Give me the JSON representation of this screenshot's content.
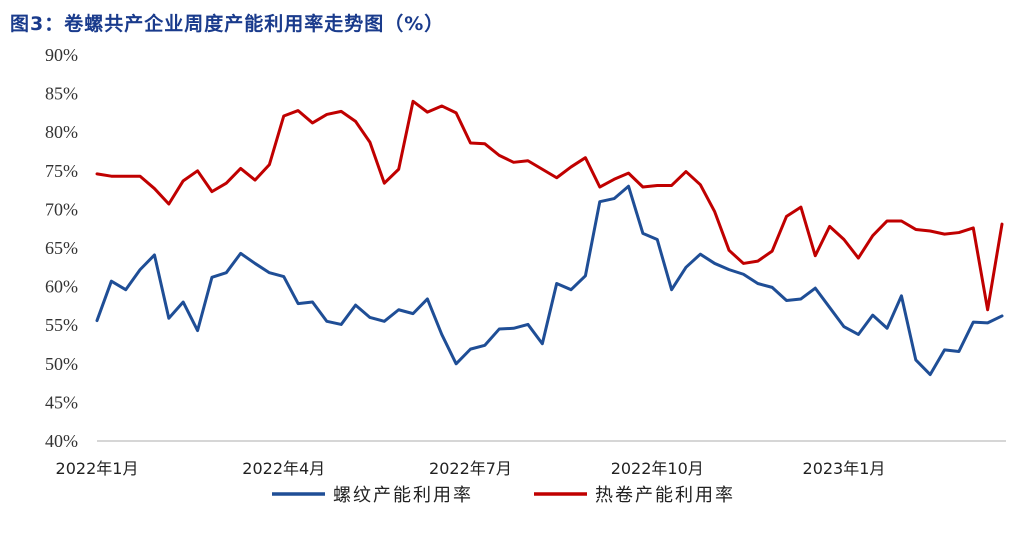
{
  "title": "图3：卷螺共产企业周度产能利用率走势图（%）",
  "chart_data": {
    "type": "line",
    "title": "图3：卷螺共产企业周度产能利用率走势图（%）",
    "xlabel": "",
    "ylabel": "",
    "ylim": [
      40,
      90
    ],
    "yticks": [
      "40%",
      "45%",
      "50%",
      "55%",
      "60%",
      "65%",
      "70%",
      "75%",
      "80%",
      "85%",
      "90%"
    ],
    "xticks": [
      "2022年1月",
      "2022年4月",
      "2022年7月",
      "2022年10月",
      "2023年1月"
    ],
    "xtick_weeks": [
      0,
      13,
      26,
      39,
      52
    ],
    "grid": false,
    "legend_position": "bottom",
    "series": [
      {
        "name": "螺纹产能利用率",
        "color": "#1f4e96",
        "values": [
          55.6,
          60.7,
          59.6,
          62.2,
          64.1,
          55.9,
          58.0,
          54.3,
          61.2,
          61.8,
          64.3,
          63.0,
          61.8,
          61.3,
          57.8,
          58.0,
          55.5,
          55.1,
          57.6,
          56.0,
          55.5,
          57.0,
          56.5,
          58.4,
          53.8,
          50.0,
          51.9,
          52.4,
          54.5,
          54.6,
          55.1,
          52.6,
          60.4,
          59.6,
          61.4,
          71.0,
          71.4,
          73.0,
          66.9,
          66.1,
          59.6,
          62.5,
          64.2,
          63.0,
          62.2,
          61.6,
          60.4,
          59.9,
          58.2,
          58.4,
          59.8,
          57.3,
          54.8,
          53.8,
          56.3,
          54.6,
          58.8,
          50.5,
          48.6,
          51.8,
          51.6,
          55.4,
          55.3,
          56.2
        ]
      },
      {
        "name": "热卷产能利用率",
        "color": "#c00000",
        "values": [
          74.6,
          74.3,
          74.3,
          74.3,
          72.7,
          70.7,
          73.7,
          75.0,
          72.3,
          73.4,
          75.3,
          73.8,
          75.8,
          82.1,
          82.8,
          81.2,
          82.3,
          82.7,
          81.4,
          78.7,
          73.4,
          75.2,
          84.0,
          82.6,
          83.4,
          82.5,
          78.6,
          78.5,
          77.0,
          76.1,
          76.3,
          75.2,
          74.1,
          75.5,
          76.7,
          72.9,
          73.9,
          74.7,
          72.9,
          73.1,
          73.1,
          74.9,
          73.2,
          69.7,
          64.7,
          63.0,
          63.3,
          64.6,
          69.1,
          70.3,
          64.0,
          67.8,
          66.1,
          63.7,
          66.6,
          68.5,
          68.5,
          67.4,
          67.2,
          66.8,
          67.0,
          67.6,
          57.0,
          68.1
        ]
      }
    ]
  }
}
